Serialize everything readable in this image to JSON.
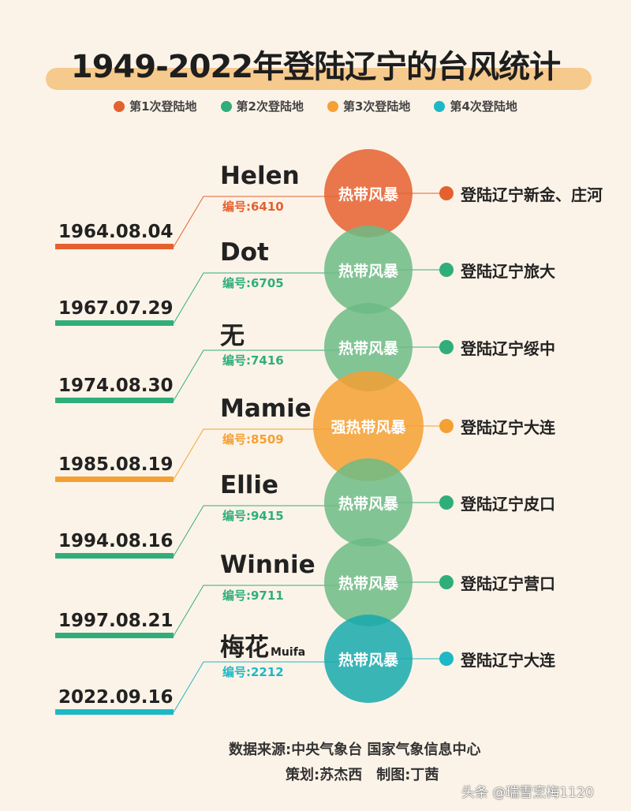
{
  "title": "1949-2022年登陆辽宁的台风统计",
  "legend": [
    {
      "label": "第1次登陆地",
      "color": "#e5602f"
    },
    {
      "label": "第2次登陆地",
      "color": "#2fae7b"
    },
    {
      "label": "第3次登陆地",
      "color": "#f5a033"
    },
    {
      "label": "第4次登陆地",
      "color": "#1cb8c6"
    }
  ],
  "typhoons": [
    {
      "name": "Helen",
      "sub": "",
      "code": "编号:6410",
      "date": "1964.08.04",
      "category": "热带风暴",
      "place": "登陆辽宁新金、庄河",
      "landing": 1
    },
    {
      "name": "Dot",
      "sub": "",
      "code": "编号:6705",
      "date": "1967.07.29",
      "category": "热带风暴",
      "place": "登陆辽宁旅大",
      "landing": 2
    },
    {
      "name": "无",
      "sub": "",
      "code": "编号:7416",
      "date": "1974.08.30",
      "category": "热带风暴",
      "place": "登陆辽宁绥中",
      "landing": 2
    },
    {
      "name": "Mamie",
      "sub": "",
      "code": "编号:8509",
      "date": "1985.08.19",
      "category": "强热带风暴",
      "place": "登陆辽宁大连",
      "landing": 3
    },
    {
      "name": "Ellie",
      "sub": "",
      "code": "编号:9415",
      "date": "1994.08.16",
      "category": "热带风暴",
      "place": "登陆辽宁皮口",
      "landing": 2
    },
    {
      "name": "Winnie",
      "sub": "",
      "code": "编号:9711",
      "date": "1997.08.21",
      "category": "热带风暴",
      "place": "登陆辽宁营口",
      "landing": 2
    },
    {
      "name": "梅花",
      "sub": "Muifa",
      "code": "编号:2212",
      "date": "2022.09.16",
      "category": "热带风暴",
      "place": "登陆辽宁大连",
      "landing": 4
    }
  ],
  "colors": {
    "circle": {
      "1": "#e5602f",
      "2": "#6dbb86",
      "3": "#f5a033",
      "4": "#17a9ad"
    },
    "accent": {
      "1": "#e5602f",
      "2": "#2fae7b",
      "3": "#f5a033",
      "4": "#1cb8c6"
    },
    "background": "#fcf3e8"
  },
  "footer": {
    "source": "数据来源:中央气象台 国家气象信息中心",
    "credits": "策划:苏杰西　制图:丁茜"
  },
  "watermark": "头条 @瑞雪烹梅1120"
}
